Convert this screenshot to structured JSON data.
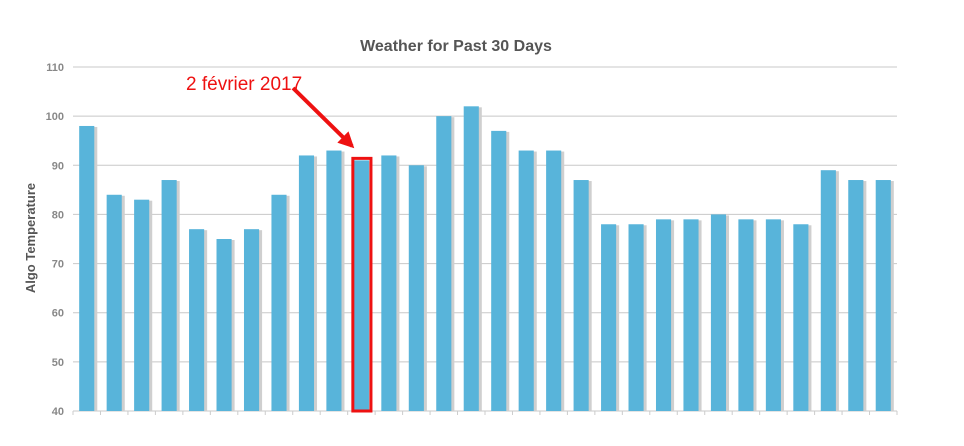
{
  "chart_data": {
    "type": "bar",
    "title": "Weather for Past 30 Days",
    "xlabel": "",
    "ylabel": "Algo Temperature",
    "ylim": [
      40,
      110
    ],
    "yticks": [
      40,
      50,
      60,
      70,
      80,
      90,
      100,
      110
    ],
    "grid": true,
    "legend": "none",
    "values": [
      98,
      84,
      83,
      87,
      77,
      75,
      77,
      84,
      92,
      93,
      91,
      92,
      90,
      100,
      102,
      97,
      93,
      93,
      87,
      78,
      78,
      79,
      79,
      80,
      79,
      79,
      78,
      89,
      87,
      87
    ],
    "highlight_index": 10,
    "annotation": {
      "text": "2 février 2017",
      "target_index": 10
    },
    "colors": {
      "bar": "#58b4da",
      "bar_shadow": "#cfcfcf",
      "grid": "#c8c8c8",
      "annotation": "#ee1111"
    }
  }
}
